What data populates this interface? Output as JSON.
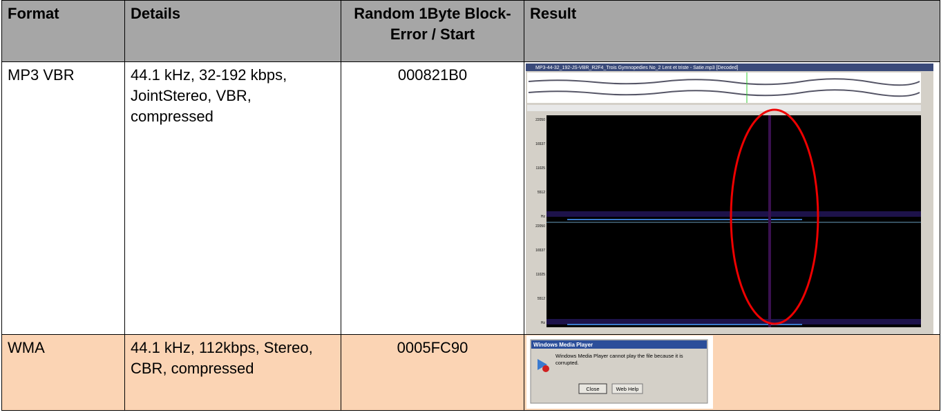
{
  "table": {
    "headers": [
      "Format",
      "Details",
      "Random 1Byte Block-Error / Start",
      "Result"
    ],
    "rows": [
      [
        "MP3 VBR",
        "44.1 kHz, 32-192 kbps, JointStereo, VBR, compressed",
        "000821B0"
      ],
      [
        "WMA",
        "44.1 kHz, 112kbps, Stereo, CBR, compressed",
        "0005FC90"
      ]
    ]
  },
  "spectrogram": {
    "title": "MP3-44-32_192-JS-VBR_R2F4_Trois Gymnopedies No_2 Lent et triste - Satie.mp3 [Decoded]",
    "freq_labels": [
      "22050",
      "16537",
      "11025",
      "5512",
      "Hz"
    ]
  },
  "dialog": {
    "title": "Windows Media Player",
    "message": "Windows Media Player cannot play the file because it is corrupted.",
    "buttons": [
      "Close",
      "Web Help"
    ]
  }
}
